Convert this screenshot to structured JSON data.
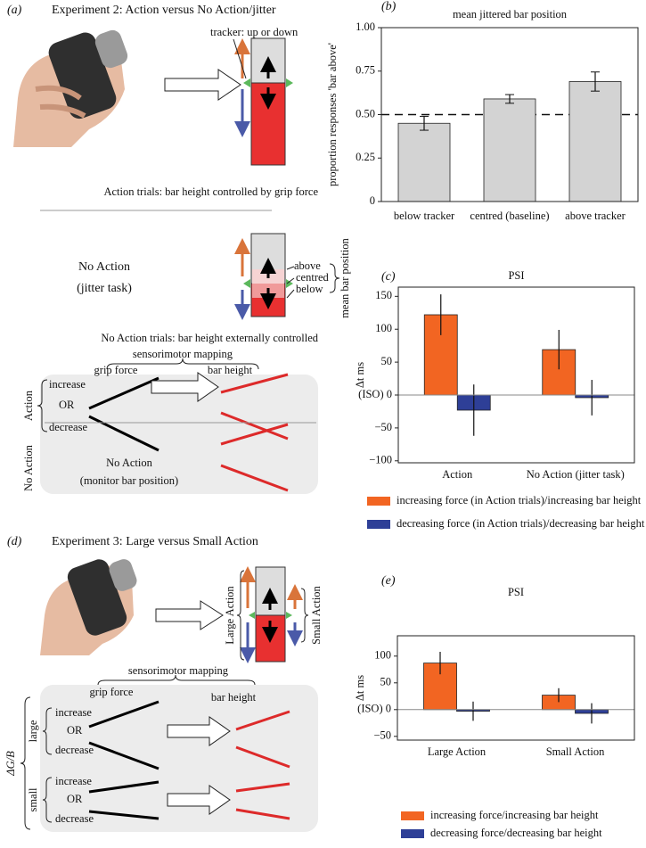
{
  "panel_a": {
    "label": "(a)",
    "title": "Experiment 2: Action versus No Action/jitter",
    "tracker": "tracker: up or down",
    "action_caption": "Action trials: bar height controlled by grip force",
    "no_action_title": "No Action",
    "no_action_subtitle": "(jitter task)",
    "positions": [
      "above",
      "centred",
      "below"
    ],
    "position_label": "mean bar position",
    "no_action_caption": "No Action trials: bar height externally controlled",
    "mapping": {
      "title": "sensorimotor mapping",
      "input": "grip force",
      "output": "bar height",
      "rows": [
        "increase",
        "OR",
        "decrease"
      ],
      "action": "Action",
      "no_action": "No Action",
      "no_action_text": "No Action",
      "no_action_note": "(monitor bar position)"
    }
  },
  "panel_d": {
    "label": "(d)",
    "title": "Experiment 3: Large versus Small Action",
    "large_action": "Large Action",
    "small_action": "Small Action",
    "mapping": {
      "title": "sensorimotor mapping",
      "input": "grip force",
      "output": "bar height",
      "group_label": "ΔG/B",
      "groups": [
        {
          "name": "large",
          "rows": [
            "increase",
            "OR",
            "decrease"
          ]
        },
        {
          "name": "small",
          "rows": [
            "increase",
            "OR",
            "decrease"
          ]
        }
      ]
    }
  },
  "chart_data": [
    {
      "type": "bar",
      "panel": "(b)",
      "title": "mean jittered bar position",
      "y_label": "proportion responses 'bar above'",
      "categories": [
        "below tracker",
        "centred (baseline)",
        "above tracker"
      ],
      "values": [
        0.45,
        0.59,
        0.69
      ],
      "errors": [
        0.04,
        0.025,
        0.055
      ],
      "color": "#d3d3d3",
      "ylim": [
        0,
        1
      ],
      "yticks": [
        0,
        0.25,
        {
          "value": 0.5,
          "label": "0.50"
        },
        0.75,
        {
          "value": 1,
          "label": "1.00"
        }
      ],
      "reference_line": 0.5
    },
    {
      "type": "bar",
      "panel": "(c)",
      "title": "PSI",
      "y_label": "Δt ms",
      "categories": [
        "Action",
        "No Action (jitter task)"
      ],
      "series": [
        {
          "name": "increasing force (in Action trials)/increasing bar height",
          "color": "#f26522",
          "values": [
            122,
            69
          ],
          "errors": [
            31,
            30
          ]
        },
        {
          "name": "decreasing force (in Action trials)/decreasing bar height",
          "color": "#2e3f97",
          "values": [
            -23,
            -4
          ],
          "errors": [
            39,
            27
          ]
        }
      ],
      "ylim": [
        -103,
        164
      ],
      "yticks": [
        150,
        100,
        50,
        {
          "value": 0,
          "label": "(ISO) 0"
        },
        {
          "value": -50,
          "label": "−50"
        },
        {
          "value": -100,
          "label": "−100"
        }
      ],
      "zero_line": true,
      "legend": "below"
    },
    {
      "type": "bar",
      "panel": "(e)",
      "title": "PSI",
      "y_label": "Δt ms",
      "categories": [
        "Large Action",
        "Small Action"
      ],
      "series": [
        {
          "name": "increasing force/increasing bar height",
          "color": "#f26522",
          "values": [
            87,
            27
          ],
          "errors": [
            21,
            13
          ]
        },
        {
          "name": "decreasing force/decreasing bar height",
          "color": "#2e3f97",
          "values": [
            -3,
            -7
          ],
          "errors": [
            18,
            19
          ]
        }
      ],
      "ylim": [
        -57,
        138
      ],
      "yticks": [
        100,
        50,
        {
          "value": 0,
          "label": "(ISO) 0"
        },
        {
          "value": -50,
          "label": "−50"
        }
      ],
      "zero_line": true,
      "legend": "below"
    }
  ]
}
